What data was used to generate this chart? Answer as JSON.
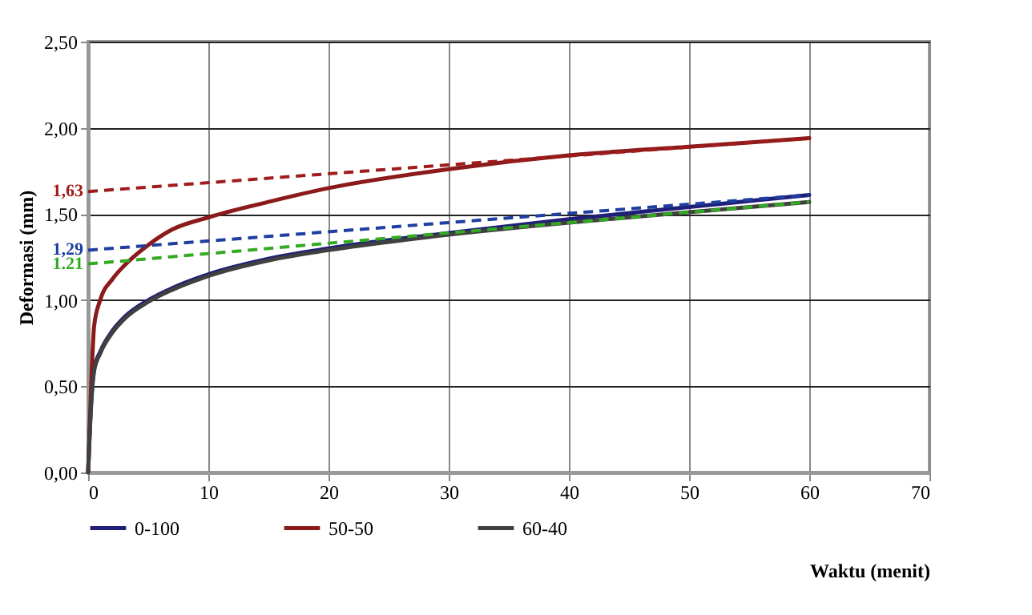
{
  "chart_data": {
    "type": "line",
    "xlabel": "Waktu (menit)",
    "ylabel": "Deformasi (mm)",
    "xlim": [
      0,
      70
    ],
    "xticks": [
      0,
      10,
      20,
      30,
      40,
      50,
      60,
      70
    ],
    "ylim": [
      0,
      2.5
    ],
    "yticks": [
      {
        "value": 0,
        "label": "0,00"
      },
      {
        "value": 0.5,
        "label": "0,50"
      },
      {
        "value": 1,
        "label": "1,00"
      },
      {
        "value": 1.5,
        "label": "1,50"
      },
      {
        "value": 2,
        "label": "2,00"
      },
      {
        "value": 2.5,
        "label": "2,50"
      }
    ],
    "grid": true,
    "legend": "bottom",
    "line_style": "solid",
    "series": [
      {
        "name": "0-100",
        "color": "#1f1f7a",
        "x": [
          0,
          0.25,
          0.5,
          1,
          2,
          3,
          5,
          7,
          10,
          15,
          20,
          30,
          40,
          50,
          60
        ],
        "values": [
          0,
          0.4,
          0.6,
          0.7,
          0.82,
          0.9,
          1.0,
          1.07,
          1.15,
          1.24,
          1.3,
          1.39,
          1.47,
          1.54,
          1.61
        ]
      },
      {
        "name": "50-50",
        "color": "#8b1a1a",
        "x": [
          0,
          0.25,
          0.5,
          1,
          2,
          3,
          5,
          7,
          10,
          15,
          20,
          30,
          40,
          50,
          60
        ],
        "values": [
          0,
          0.5,
          0.85,
          1.0,
          1.12,
          1.2,
          1.32,
          1.41,
          1.48,
          1.57,
          1.65,
          1.76,
          1.84,
          1.89,
          1.94
        ]
      },
      {
        "name": "60-40",
        "color": "#404040",
        "x": [
          0,
          0.25,
          0.5,
          1,
          2,
          3,
          5,
          7,
          10,
          15,
          20,
          30,
          40,
          50,
          60
        ],
        "values": [
          0,
          0.39,
          0.59,
          0.69,
          0.81,
          0.89,
          0.99,
          1.06,
          1.14,
          1.23,
          1.29,
          1.38,
          1.45,
          1.51,
          1.57
        ]
      },
      {
        "type": "line",
        "line_style": "dashed",
        "color": "#a01c1c",
        "x": [
          0,
          60
        ],
        "values": [
          1.63,
          1.94
        ]
      },
      {
        "type": "line",
        "line_style": "dashed",
        "color": "#1f3fa0",
        "x": [
          0,
          60
        ],
        "values": [
          1.29,
          1.61
        ]
      },
      {
        "type": "line",
        "line_style": "dashed",
        "color": "#33aa22",
        "x": [
          0,
          60
        ],
        "values": [
          1.21,
          1.57
        ]
      }
    ],
    "annotations": [
      "1,63",
      "1,29",
      "1.21"
    ]
  }
}
